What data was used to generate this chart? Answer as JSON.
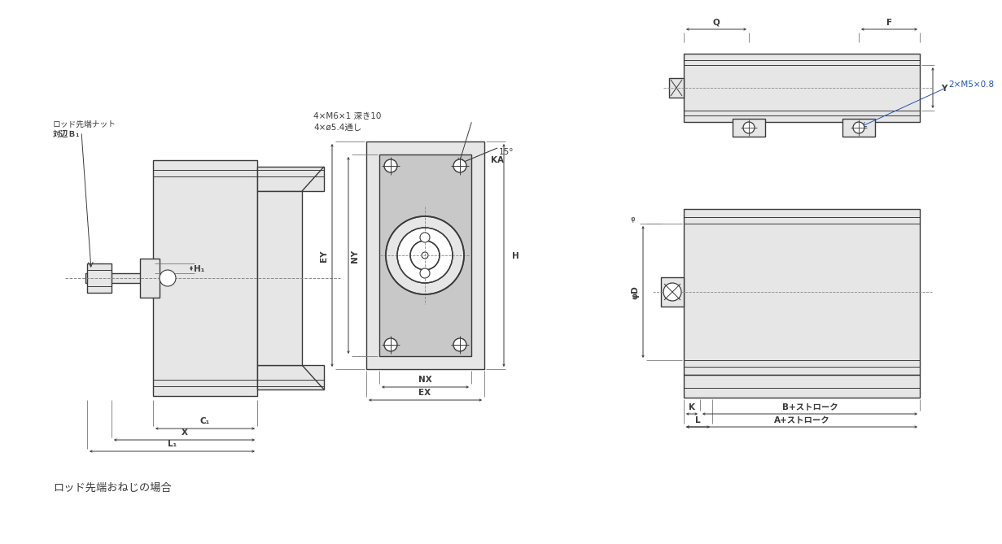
{
  "bg_color": "#ffffff",
  "line_color": "#3a3a3a",
  "gray_fill": "#d4d4d4",
  "light_gray": "#e6e6e6",
  "mid_gray": "#c8c8c8",
  "dark_gray": "#b0b0b0",
  "dim_color": "#3a3a3a",
  "blue_color": "#2255aa",
  "title_text": "ロッド先端おねじの場合",
  "ann_bolt": "4×M6×1 深き10",
  "ann_hole": "4×ø5.4通し",
  "ann_angle": "15°",
  "ann_m5": "2×M5×0.8",
  "label_nut1": "ロッド先端ナット",
  "label_nut2": "対辺Ｂ₁"
}
